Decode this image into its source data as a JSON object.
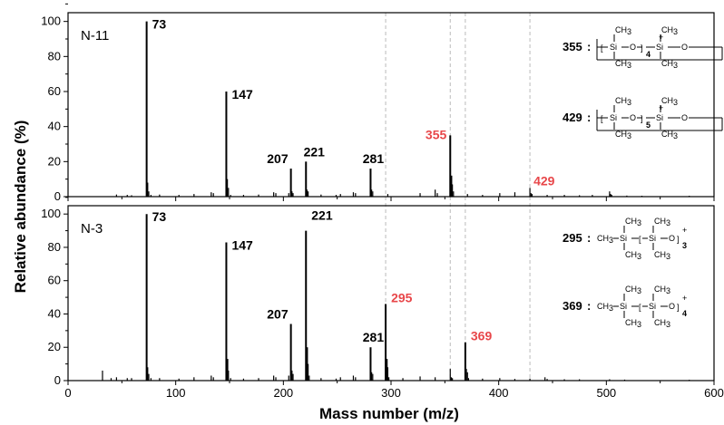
{
  "chart_data": {
    "type": "bar",
    "xlabel": "Mass number (m/z)",
    "ylabel": "Relative abundance (%)",
    "xlim": [
      0,
      600
    ],
    "xticks": [
      "0",
      "100",
      "200",
      "300",
      "400",
      "500",
      "600"
    ],
    "reference_lines_x": [
      295,
      355,
      369,
      429
    ],
    "colors": {
      "black": "#000000",
      "highlight": "#e8474a",
      "refline": "#bbbbbb"
    },
    "panels": [
      {
        "label": "N-11",
        "ylim": [
          0,
          105
        ],
        "yticks": [
          "0",
          "20",
          "40",
          "60",
          "80",
          "100"
        ],
        "peaks": [
          [
            45,
            1.2
          ],
          [
            55,
            1.0
          ],
          [
            59,
            0.8
          ],
          [
            73,
            100
          ],
          [
            74,
            8
          ],
          [
            75,
            3
          ],
          [
            77,
            1.0
          ],
          [
            85,
            1.2
          ],
          [
            103,
            1.0
          ],
          [
            117,
            1.5
          ],
          [
            133,
            2.5
          ],
          [
            135,
            2
          ],
          [
            147,
            60
          ],
          [
            148,
            10
          ],
          [
            149,
            5
          ],
          [
            151,
            1.0
          ],
          [
            163,
            1.0
          ],
          [
            177,
            1.2
          ],
          [
            191,
            2.5
          ],
          [
            193,
            2
          ],
          [
            205,
            2
          ],
          [
            207,
            16
          ],
          [
            208,
            3
          ],
          [
            209,
            2
          ],
          [
            221,
            20
          ],
          [
            222,
            4
          ],
          [
            223,
            3
          ],
          [
            235,
            1.2
          ],
          [
            249,
            1.0
          ],
          [
            253,
            1.5
          ],
          [
            265,
            2.5
          ],
          [
            267,
            2
          ],
          [
            281,
            16
          ],
          [
            282,
            4
          ],
          [
            283,
            3
          ],
          [
            297,
            1.5
          ],
          [
            327,
            2
          ],
          [
            341,
            4
          ],
          [
            343,
            2
          ],
          [
            355,
            35
          ],
          [
            356,
            12
          ],
          [
            357,
            7
          ],
          [
            358,
            3
          ],
          [
            371,
            1.5
          ],
          [
            385,
            1.0
          ],
          [
            401,
            2
          ],
          [
            415,
            2.5
          ],
          [
            429,
            5
          ],
          [
            430,
            2
          ],
          [
            431,
            1.5
          ],
          [
            445,
            1.0
          ],
          [
            461,
            1.0
          ],
          [
            475,
            0.8
          ],
          [
            487,
            1.0
          ],
          [
            503,
            3
          ],
          [
            504,
            1.5
          ],
          [
            505,
            1.0
          ],
          [
            519,
            0.6
          ],
          [
            533,
            0.5
          ],
          [
            577,
            0.5
          ]
        ],
        "labels": [
          {
            "x": 73,
            "y": 100,
            "text": "73",
            "color": "black"
          },
          {
            "x": 147,
            "y": 60,
            "text": "147",
            "color": "black"
          },
          {
            "x": 207,
            "y": 16,
            "text": "207",
            "color": "black"
          },
          {
            "x": 221,
            "y": 20,
            "text": "221",
            "color": "black"
          },
          {
            "x": 281,
            "y": 16,
            "text": "281",
            "color": "black"
          },
          {
            "x": 355,
            "y": 35,
            "text": "355",
            "color": "highlight"
          },
          {
            "x": 429,
            "y": 5,
            "text": "429",
            "color": "highlight"
          }
        ]
      },
      {
        "label": "N-3",
        "ylim": [
          0,
          105
        ],
        "yticks": [
          "0",
          "20",
          "40",
          "60",
          "80",
          "100"
        ],
        "peaks": [
          [
            32,
            6
          ],
          [
            40,
            1.5
          ],
          [
            45,
            2
          ],
          [
            55,
            1.5
          ],
          [
            59,
            1.5
          ],
          [
            73,
            100
          ],
          [
            74,
            8
          ],
          [
            75,
            4
          ],
          [
            77,
            1.5
          ],
          [
            85,
            1.5
          ],
          [
            103,
            1.2
          ],
          [
            117,
            2
          ],
          [
            133,
            3
          ],
          [
            135,
            2
          ],
          [
            147,
            83
          ],
          [
            148,
            13
          ],
          [
            149,
            6
          ],
          [
            151,
            1.5
          ],
          [
            163,
            1.2
          ],
          [
            177,
            1.5
          ],
          [
            191,
            3
          ],
          [
            193,
            2
          ],
          [
            205,
            3
          ],
          [
            207,
            34
          ],
          [
            208,
            6
          ],
          [
            209,
            4
          ],
          [
            221,
            90
          ],
          [
            222,
            20
          ],
          [
            223,
            10
          ],
          [
            224,
            3
          ],
          [
            235,
            1.5
          ],
          [
            249,
            1.2
          ],
          [
            253,
            2
          ],
          [
            265,
            3
          ],
          [
            267,
            2
          ],
          [
            281,
            20
          ],
          [
            282,
            5
          ],
          [
            283,
            4
          ],
          [
            295,
            46
          ],
          [
            296,
            13
          ],
          [
            297,
            8
          ],
          [
            298,
            2
          ],
          [
            311,
            1.5
          ],
          [
            327,
            2.5
          ],
          [
            341,
            2
          ],
          [
            355,
            7
          ],
          [
            356,
            2
          ],
          [
            357,
            1.5
          ],
          [
            369,
            23
          ],
          [
            370,
            7
          ],
          [
            371,
            5
          ],
          [
            372,
            1.5
          ],
          [
            385,
            1.2
          ],
          [
            401,
            1.5
          ],
          [
            415,
            1.0
          ],
          [
            429,
            1.2
          ],
          [
            443,
            2
          ],
          [
            445,
            1.0
          ],
          [
            461,
            0.8
          ],
          [
            475,
            0.8
          ],
          [
            503,
            0.8
          ],
          [
            517,
            0.6
          ],
          [
            577,
            0.5
          ]
        ],
        "labels": [
          {
            "x": 73,
            "y": 100,
            "text": "73",
            "color": "black"
          },
          {
            "x": 147,
            "y": 83,
            "text": "147",
            "color": "black"
          },
          {
            "x": 207,
            "y": 34,
            "text": "207",
            "color": "black"
          },
          {
            "x": 221,
            "y": 90,
            "text": "221",
            "color": "black"
          },
          {
            "x": 281,
            "y": 20,
            "text": "281",
            "color": "black"
          },
          {
            "x": 295,
            "y": 46,
            "text": "295",
            "color": "highlight"
          },
          {
            "x": 369,
            "y": 23,
            "text": "369",
            "color": "highlight"
          }
        ]
      }
    ],
    "structures": [
      {
        "panel": 0,
        "mass": "355",
        "kind": "cyclic",
        "repeat": "4"
      },
      {
        "panel": 0,
        "mass": "429",
        "kind": "cyclic",
        "repeat": "5"
      },
      {
        "panel": 1,
        "mass": "295",
        "kind": "linear",
        "repeat": "3"
      },
      {
        "panel": 1,
        "mass": "369",
        "kind": "linear",
        "repeat": "4"
      }
    ],
    "structure_text": {
      "sep": ":",
      "ch3": "CH",
      "ch3_sub": "3",
      "si": "Si",
      "o": "O",
      "plus": "+"
    }
  }
}
